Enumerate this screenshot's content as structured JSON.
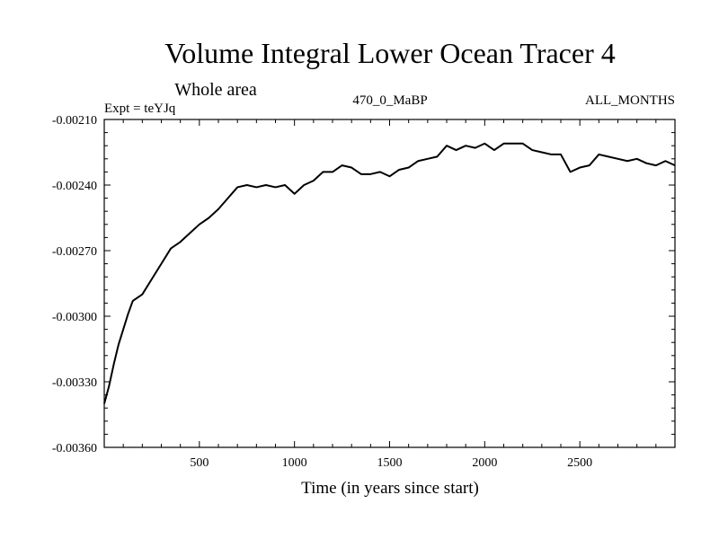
{
  "chart_data": {
    "type": "line",
    "title": "Volume Integral Lower Ocean Tracer 4",
    "subtitle": "Whole area",
    "experiment": "Expt = teYJq",
    "period": "470_0_MaBP",
    "months": "ALL_MONTHS",
    "xlabel": "Time (in years since start)",
    "ylabel": "",
    "xlim": [
      0,
      3000
    ],
    "ylim": [
      -0.0036,
      -0.0021
    ],
    "xticks": [
      500,
      1000,
      1500,
      2000,
      2500
    ],
    "xtick_labels": [
      "500",
      "1000",
      "1500",
      "2000",
      "2500"
    ],
    "yticks": [
      -0.0036,
      -0.0033,
      -0.003,
      -0.0027,
      -0.0024,
      -0.0021
    ],
    "ytick_labels": [
      "-0.00360",
      "-0.00330",
      "-0.00300",
      "-0.00270",
      "-0.00240",
      "-0.00210"
    ],
    "series": [
      {
        "name": "Tracer 4",
        "color": "#000000",
        "x": [
          0,
          25,
          50,
          75,
          100,
          125,
          150,
          200,
          250,
          300,
          350,
          400,
          450,
          500,
          550,
          600,
          650,
          700,
          750,
          800,
          850,
          900,
          950,
          1000,
          1050,
          1100,
          1150,
          1200,
          1250,
          1300,
          1350,
          1400,
          1450,
          1500,
          1550,
          1600,
          1650,
          1700,
          1750,
          1800,
          1850,
          1900,
          1950,
          2000,
          2050,
          2100,
          2150,
          2200,
          2250,
          2300,
          2350,
          2400,
          2450,
          2500,
          2550,
          2600,
          2650,
          2700,
          2750,
          2800,
          2850,
          2900,
          2950,
          3000
        ],
        "values": [
          -0.0034,
          -0.00332,
          -0.00322,
          -0.00313,
          -0.00306,
          -0.00299,
          -0.00293,
          -0.0029,
          -0.00283,
          -0.00276,
          -0.00269,
          -0.00266,
          -0.00262,
          -0.00258,
          -0.00255,
          -0.00251,
          -0.00246,
          -0.00241,
          -0.0024,
          -0.00241,
          -0.0024,
          -0.00241,
          -0.0024,
          -0.00244,
          -0.0024,
          -0.00238,
          -0.00234,
          -0.00234,
          -0.00231,
          -0.00232,
          -0.00235,
          -0.00235,
          -0.00234,
          -0.00236,
          -0.00233,
          -0.00232,
          -0.00229,
          -0.00228,
          -0.00227,
          -0.00222,
          -0.00224,
          -0.00222,
          -0.00223,
          -0.00221,
          -0.00224,
          -0.00221,
          -0.00221,
          -0.00221,
          -0.00224,
          -0.00225,
          -0.00226,
          -0.00226,
          -0.00234,
          -0.00232,
          -0.00231,
          -0.00226,
          -0.00227,
          -0.00228,
          -0.00229,
          -0.00228,
          -0.0023,
          -0.00231,
          -0.00229,
          -0.00231
        ]
      }
    ]
  }
}
